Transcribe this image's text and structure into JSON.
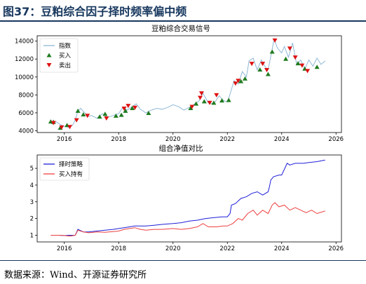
{
  "figure": {
    "title": "图37：豆粕综合因子择时频率偏中频",
    "source": "数据来源：Wind、开源证券研究所"
  },
  "chart_data": [
    {
      "type": "line",
      "title": "豆粕综合交易信号",
      "xlabel": "",
      "ylabel": "",
      "xlim": [
        2015.0,
        2026.2
      ],
      "ylim": [
        3800,
        14600
      ],
      "x_ticks": [
        2016,
        2018,
        2020,
        2022,
        2024,
        2026
      ],
      "y_ticks": [
        4000,
        6000,
        8000,
        10000,
        12000,
        14000
      ],
      "legend_position": "upper-left",
      "colors": {
        "index": "#8fb8d6",
        "buy": "#1f7a1f",
        "sell": "#dd1111"
      },
      "series": [
        {
          "name": "指数",
          "x": [
            2015.5,
            2015.7,
            2015.85,
            2016.0,
            2016.15,
            2016.3,
            2016.4,
            2016.5,
            2016.6,
            2016.75,
            2016.9,
            2017.0,
            2017.2,
            2017.4,
            2017.6,
            2017.8,
            2018.0,
            2018.15,
            2018.3,
            2018.5,
            2018.65,
            2018.8,
            2019.0,
            2019.2,
            2019.4,
            2019.6,
            2019.8,
            2020.0,
            2020.2,
            2020.4,
            2020.6,
            2020.8,
            2020.95,
            2021.1,
            2021.3,
            2021.5,
            2021.7,
            2021.85,
            2022.0,
            2022.1,
            2022.25,
            2022.4,
            2022.55,
            2022.7,
            2022.8,
            2022.95,
            2023.1,
            2023.25,
            2023.4,
            2023.5,
            2023.6,
            2023.72,
            2023.85,
            2024.0,
            2024.1,
            2024.25,
            2024.4,
            2024.55,
            2024.7,
            2024.85,
            2025.0,
            2025.15,
            2025.3,
            2025.45,
            2025.6
          ],
          "values": [
            4900,
            5000,
            4700,
            4500,
            4400,
            4600,
            5200,
            6200,
            6500,
            6000,
            5600,
            5700,
            5400,
            5900,
            5500,
            5700,
            5900,
            6600,
            6300,
            6700,
            7000,
            6400,
            6000,
            6300,
            6500,
            6400,
            6600,
            6900,
            6700,
            6300,
            6600,
            7000,
            7300,
            8200,
            7100,
            7000,
            7900,
            7400,
            7200,
            8100,
            9600,
            9200,
            10600,
            10000,
            11800,
            12100,
            10800,
            11900,
            11100,
            10800,
            12300,
            14200,
            13200,
            12700,
            13400,
            12200,
            13800,
            11400,
            11900,
            10900,
            11900,
            11200,
            12100,
            11400,
            11800
          ]
        },
        {
          "name": "买入",
          "points": [
            [
              2015.5,
              5000
            ],
            [
              2015.6,
              4950
            ],
            [
              2015.85,
              4300
            ],
            [
              2016.1,
              4600
            ],
            [
              2016.5,
              6200
            ],
            [
              2016.7,
              5800
            ],
            [
              2017.3,
              5550
            ],
            [
              2017.5,
              5850
            ],
            [
              2017.9,
              5650
            ],
            [
              2018.1,
              5750
            ],
            [
              2018.25,
              6200
            ],
            [
              2018.5,
              6500
            ],
            [
              2019.1,
              5950
            ],
            [
              2020.65,
              6500
            ],
            [
              2020.85,
              7000
            ],
            [
              2021.15,
              7250
            ],
            [
              2021.5,
              7100
            ],
            [
              2021.8,
              7350
            ],
            [
              2022.05,
              7400
            ],
            [
              2022.5,
              9500
            ],
            [
              2022.65,
              9800
            ],
            [
              2023.2,
              10800
            ],
            [
              2023.5,
              10300
            ],
            [
              2023.65,
              12800
            ],
            [
              2024.15,
              12000
            ],
            [
              2024.6,
              11500
            ],
            [
              2024.85,
              10900
            ],
            [
              2025.3,
              11100
            ]
          ]
        },
        {
          "name": "卖出",
          "points": [
            [
              2015.6,
              4900
            ],
            [
              2015.9,
              4400
            ],
            [
              2016.2,
              4450
            ],
            [
              2016.45,
              5200
            ],
            [
              2016.85,
              5700
            ],
            [
              2017.55,
              5400
            ],
            [
              2018.2,
              6500
            ],
            [
              2018.35,
              6800
            ],
            [
              2018.6,
              6600
            ],
            [
              2020.7,
              6700
            ],
            [
              2021.0,
              7700
            ],
            [
              2021.05,
              8200
            ],
            [
              2021.35,
              7150
            ],
            [
              2021.6,
              8000
            ],
            [
              2022.3,
              9300
            ],
            [
              2022.4,
              9600
            ],
            [
              2022.9,
              11500
            ],
            [
              2023.3,
              11500
            ],
            [
              2023.45,
              10800
            ],
            [
              2023.75,
              14100
            ],
            [
              2024.3,
              13200
            ],
            [
              2024.5,
              12200
            ],
            [
              2024.75,
              11300
            ],
            [
              2024.95,
              10700
            ]
          ]
        }
      ]
    },
    {
      "type": "line",
      "title": "组合净值对比",
      "xlabel": "",
      "ylabel": "",
      "xlim": [
        2015.0,
        2026.2
      ],
      "ylim": [
        0.6,
        5.8
      ],
      "x_ticks": [
        2016,
        2018,
        2020,
        2022,
        2024,
        2026
      ],
      "y_ticks": [
        1,
        2,
        3,
        4,
        5
      ],
      "legend_position": "upper-left",
      "series": [
        {
          "name": "择时策略",
          "color": "#1f1fd8",
          "x": [
            2015.5,
            2015.8,
            2016.0,
            2016.2,
            2016.4,
            2016.5,
            2016.7,
            2016.9,
            2017.2,
            2017.5,
            2017.8,
            2018.0,
            2018.2,
            2018.4,
            2018.6,
            2018.8,
            2019.0,
            2019.3,
            2019.6,
            2020.0,
            2020.3,
            2020.6,
            2020.9,
            2021.2,
            2021.5,
            2021.8,
            2022.0,
            2022.1,
            2022.15,
            2022.3,
            2022.5,
            2022.7,
            2022.9,
            2023.1,
            2023.3,
            2023.5,
            2023.55,
            2023.6,
            2023.7,
            2023.9,
            2024.0,
            2024.2,
            2024.3,
            2024.5,
            2024.8,
            2025.0,
            2025.3,
            2025.6
          ],
          "values": [
            1.0,
            1.0,
            0.98,
            1.0,
            1.0,
            1.35,
            1.2,
            1.2,
            1.25,
            1.3,
            1.35,
            1.4,
            1.45,
            1.5,
            1.55,
            1.55,
            1.55,
            1.6,
            1.65,
            1.7,
            1.75,
            1.85,
            1.9,
            2.0,
            2.05,
            2.1,
            2.1,
            2.3,
            2.8,
            2.9,
            3.2,
            3.3,
            3.5,
            3.6,
            3.4,
            3.6,
            3.9,
            4.3,
            4.5,
            4.6,
            4.6,
            5.3,
            5.2,
            5.3,
            5.3,
            5.35,
            5.4,
            5.5
          ]
        },
        {
          "name": "买入持有",
          "color": "#ee4040",
          "x": [
            2015.5,
            2015.8,
            2016.0,
            2016.2,
            2016.4,
            2016.5,
            2016.7,
            2016.9,
            2017.2,
            2017.5,
            2017.8,
            2018.0,
            2018.2,
            2018.4,
            2018.6,
            2018.8,
            2019.0,
            2019.3,
            2019.6,
            2020.0,
            2020.3,
            2020.6,
            2020.9,
            2021.1,
            2021.3,
            2021.6,
            2021.85,
            2022.0,
            2022.2,
            2022.4,
            2022.55,
            2022.75,
            2022.95,
            2023.1,
            2023.3,
            2023.5,
            2023.65,
            2023.75,
            2023.9,
            2024.1,
            2024.3,
            2024.5,
            2024.7,
            2024.9,
            2025.1,
            2025.3,
            2025.6
          ],
          "values": [
            1.0,
            1.0,
            0.98,
            0.95,
            1.0,
            1.3,
            1.2,
            1.15,
            1.2,
            1.18,
            1.22,
            1.25,
            1.35,
            1.4,
            1.45,
            1.35,
            1.3,
            1.35,
            1.35,
            1.4,
            1.35,
            1.4,
            1.5,
            1.7,
            1.5,
            1.5,
            1.55,
            1.55,
            1.7,
            2.0,
            1.9,
            2.3,
            2.5,
            2.2,
            2.5,
            2.3,
            2.8,
            2.95,
            2.7,
            2.8,
            2.5,
            2.65,
            2.5,
            2.35,
            2.5,
            2.3,
            2.45
          ]
        }
      ]
    }
  ]
}
